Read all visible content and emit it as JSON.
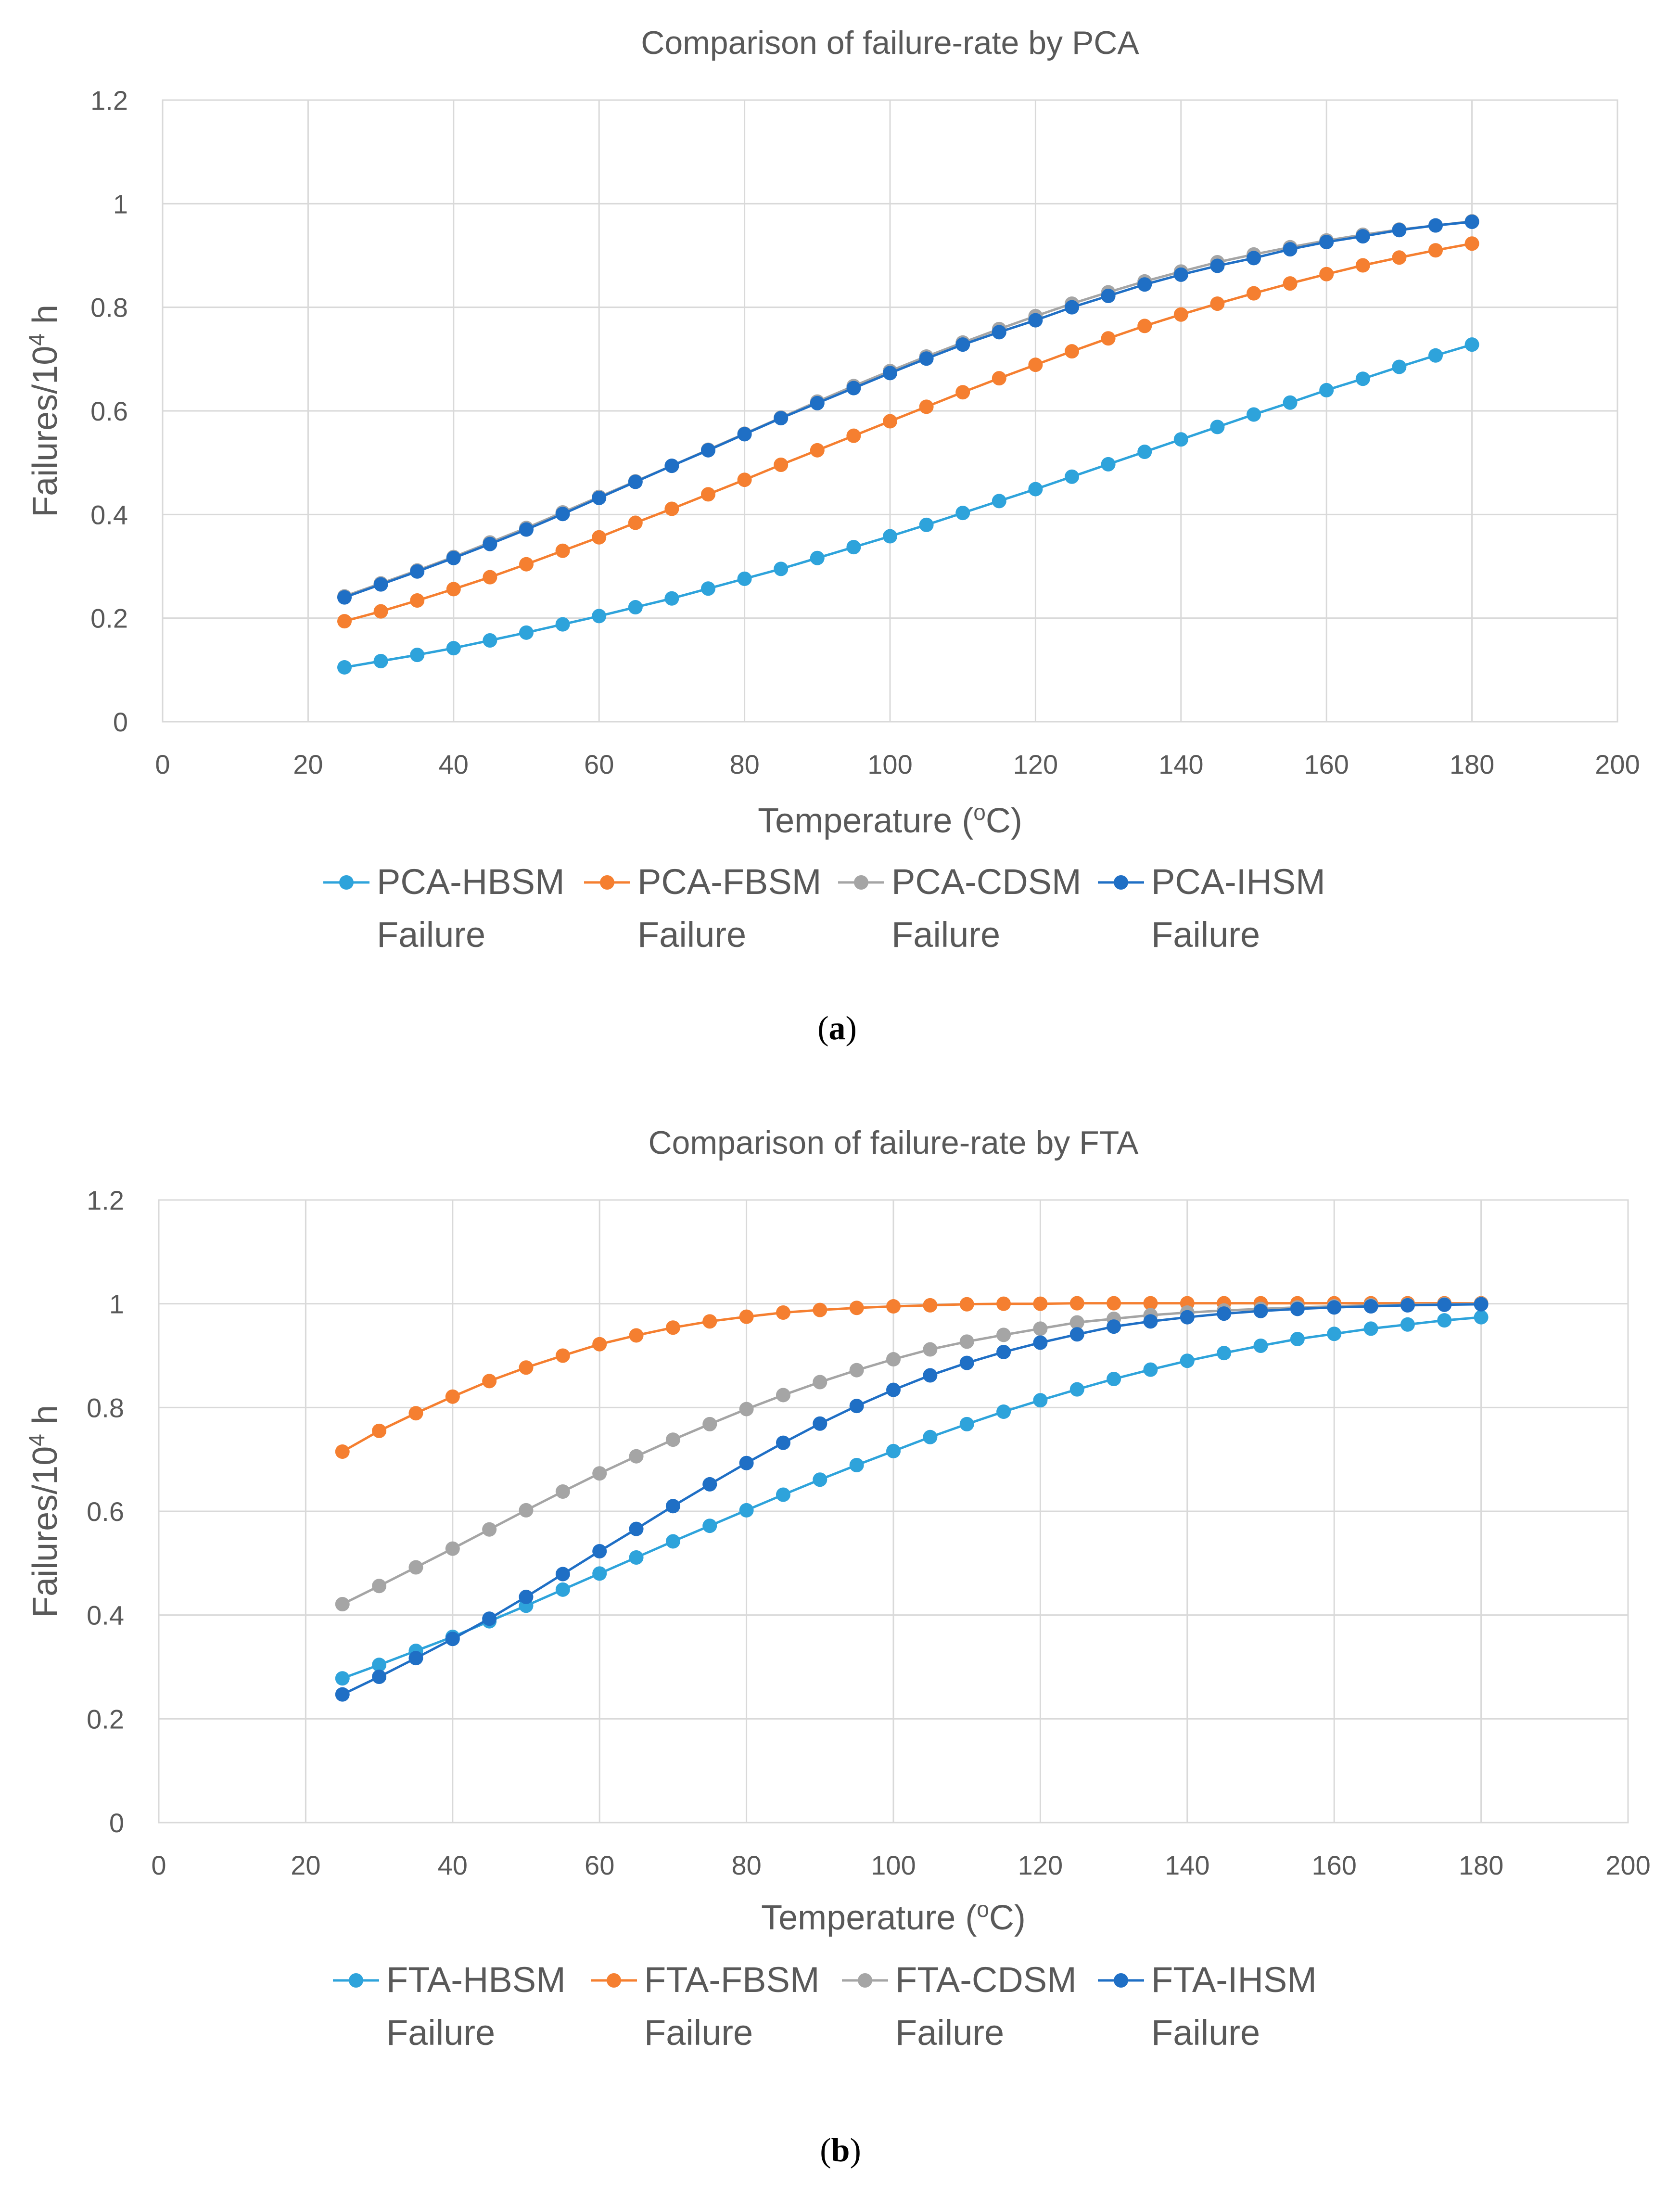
{
  "colors": {
    "hbsm": "#2EA3DB",
    "fbsm": "#F57F30",
    "cdsm": "#A5A5A5",
    "ihsm": "#1F6FC5"
  },
  "chart_data": [
    {
      "type": "line",
      "title": "Comparison of failure-rate by PCA",
      "xlabel": "Temperature (",
      "xlabel_sup": "o",
      "xlabel_suffix": "C)",
      "ylabel": "Failures/10",
      "ylabel_sup": "4",
      "ylabel_suffix": " h",
      "xlim": [
        0,
        200
      ],
      "ylim": [
        0,
        1.2
      ],
      "xticks": [
        "0",
        "20",
        "40",
        "60",
        "80",
        "100",
        "120",
        "140",
        "160",
        "180",
        "200"
      ],
      "yticks": [
        "0",
        "0.2",
        "0.4",
        "0.6",
        "0.8",
        "1",
        "1.2"
      ],
      "grid": true,
      "legend_position": "bottom",
      "caption": "a",
      "x": [
        25,
        30,
        35,
        40,
        45,
        50,
        55,
        60,
        65,
        70,
        75,
        80,
        85,
        90,
        95,
        100,
        105,
        110,
        115,
        120,
        125,
        130,
        135,
        140,
        145,
        150,
        155,
        160,
        165,
        170,
        175,
        180
      ],
      "series": [
        {
          "name_line1": "PCA-HBSM",
          "name_line2": "Failure",
          "color_key": "hbsm",
          "values": [
            0.105,
            0.117,
            0.129,
            0.142,
            0.157,
            0.172,
            0.188,
            0.204,
            0.221,
            0.238,
            0.257,
            0.276,
            0.295,
            0.316,
            0.337,
            0.358,
            0.38,
            0.403,
            0.426,
            0.449,
            0.473,
            0.497,
            0.521,
            0.545,
            0.569,
            0.593,
            0.616,
            0.64,
            0.662,
            0.685,
            0.707,
            0.728
          ]
        },
        {
          "name_line1": "PCA-FBSM",
          "name_line2": "Failure",
          "color_key": "fbsm",
          "values": [
            0.194,
            0.213,
            0.234,
            0.256,
            0.279,
            0.304,
            0.33,
            0.356,
            0.384,
            0.411,
            0.439,
            0.467,
            0.496,
            0.524,
            0.552,
            0.58,
            0.608,
            0.636,
            0.663,
            0.689,
            0.715,
            0.74,
            0.764,
            0.786,
            0.807,
            0.827,
            0.846,
            0.864,
            0.881,
            0.896,
            0.91,
            0.923
          ]
        },
        {
          "name_line1": "PCA-CDSM",
          "name_line2": "Failure",
          "color_key": "cdsm",
          "values": [
            0.242,
            0.267,
            0.292,
            0.318,
            0.346,
            0.374,
            0.404,
            0.434,
            0.464,
            0.494,
            0.525,
            0.556,
            0.587,
            0.618,
            0.648,
            0.677,
            0.705,
            0.732,
            0.758,
            0.783,
            0.807,
            0.829,
            0.85,
            0.869,
            0.887,
            0.902,
            0.916,
            0.929,
            0.94,
            0.95,
            0.958,
            0.966
          ]
        },
        {
          "name_line1": "PCA-IHSM",
          "name_line2": "Failure",
          "color_key": "ihsm",
          "values": [
            0.24,
            0.265,
            0.29,
            0.316,
            0.343,
            0.371,
            0.401,
            0.432,
            0.463,
            0.494,
            0.524,
            0.555,
            0.586,
            0.615,
            0.644,
            0.673,
            0.701,
            0.728,
            0.752,
            0.775,
            0.8,
            0.822,
            0.844,
            0.863,
            0.88,
            0.895,
            0.912,
            0.926,
            0.937,
            0.949,
            0.958,
            0.965
          ]
        }
      ]
    },
    {
      "type": "line",
      "title": "Comparison of failure-rate by FTA",
      "xlabel": "Temperature (",
      "xlabel_sup": "o",
      "xlabel_suffix": "C)",
      "ylabel": "Failures/10",
      "ylabel_sup": "4",
      "ylabel_suffix": " h",
      "xlim": [
        0,
        200
      ],
      "ylim": [
        0,
        1.2
      ],
      "xticks": [
        "0",
        "20",
        "40",
        "60",
        "80",
        "100",
        "120",
        "140",
        "160",
        "180",
        "200"
      ],
      "yticks": [
        "0",
        "0.2",
        "0.4",
        "0.6",
        "0.8",
        "1",
        "1.2"
      ],
      "grid": true,
      "legend_position": "bottom",
      "caption": "b",
      "x": [
        25,
        30,
        35,
        40,
        45,
        50,
        55,
        60,
        65,
        70,
        75,
        80,
        85,
        90,
        95,
        100,
        105,
        110,
        115,
        120,
        125,
        130,
        135,
        140,
        145,
        150,
        155,
        160,
        165,
        170,
        175,
        180
      ],
      "series": [
        {
          "name_line1": "FTA-HBSM",
          "name_line2": "Failure",
          "color_key": "hbsm",
          "values": [
            0.278,
            0.304,
            0.331,
            0.358,
            0.388,
            0.418,
            0.449,
            0.48,
            0.511,
            0.542,
            0.572,
            0.602,
            0.632,
            0.661,
            0.689,
            0.716,
            0.743,
            0.768,
            0.792,
            0.814,
            0.835,
            0.855,
            0.873,
            0.89,
            0.905,
            0.919,
            0.932,
            0.942,
            0.952,
            0.96,
            0.968,
            0.974
          ]
        },
        {
          "name_line1": "FTA-FBSM",
          "name_line2": "Failure",
          "color_key": "fbsm",
          "values": [
            0.715,
            0.755,
            0.789,
            0.821,
            0.851,
            0.877,
            0.9,
            0.922,
            0.939,
            0.954,
            0.966,
            0.975,
            0.983,
            0.988,
            0.992,
            0.995,
            0.997,
            0.999,
            1.0,
            1.0,
            1.001,
            1.001,
            1.001,
            1.001,
            1.001,
            1.001,
            1.001,
            1.001,
            1.001,
            1.001,
            1.001,
            1.001
          ]
        },
        {
          "name_line1": "FTA-CDSM",
          "name_line2": "Failure",
          "color_key": "cdsm",
          "values": [
            0.421,
            0.456,
            0.492,
            0.528,
            0.565,
            0.602,
            0.638,
            0.673,
            0.706,
            0.738,
            0.768,
            0.797,
            0.824,
            0.849,
            0.872,
            0.893,
            0.912,
            0.927,
            0.94,
            0.952,
            0.964,
            0.971,
            0.978,
            0.983,
            0.987,
            0.99,
            0.993,
            0.995,
            0.997,
            0.998,
            0.999,
            1.0
          ]
        },
        {
          "name_line1": "FTA-IHSM",
          "name_line2": "Failure",
          "color_key": "ihsm",
          "values": [
            0.247,
            0.281,
            0.317,
            0.354,
            0.393,
            0.435,
            0.479,
            0.523,
            0.566,
            0.61,
            0.652,
            0.693,
            0.732,
            0.769,
            0.803,
            0.834,
            0.862,
            0.886,
            0.907,
            0.925,
            0.941,
            0.956,
            0.966,
            0.974,
            0.981,
            0.986,
            0.99,
            0.993,
            0.995,
            0.997,
            0.998,
            0.999
          ]
        }
      ]
    }
  ]
}
